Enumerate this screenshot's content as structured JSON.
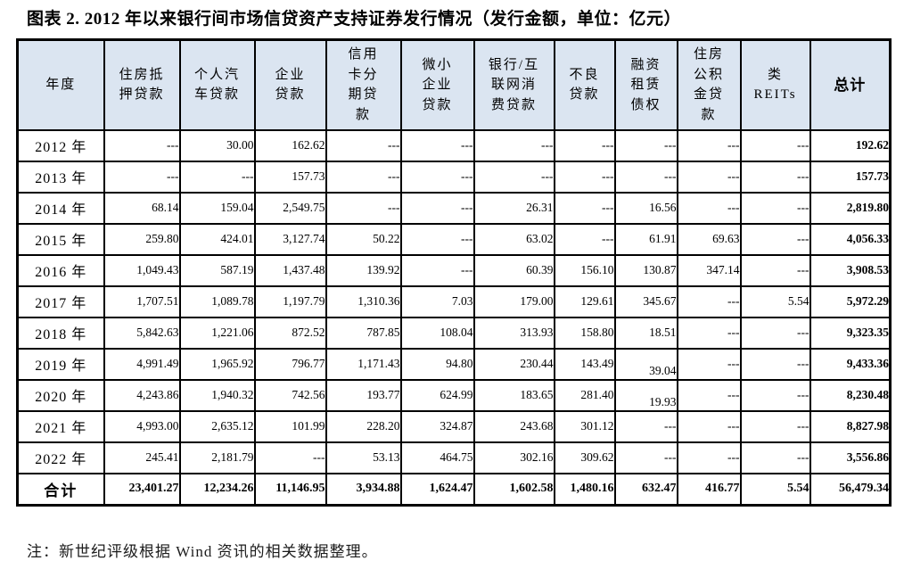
{
  "title": "图表 2. 2012 年以来银行间市场信贷资产支持证券发行情况（发行金额，单位：亿元）",
  "note": "注：新世纪评级根据 Wind 资讯的相关数据整理。",
  "colors": {
    "header_background": "#dbe5f1",
    "border": "#000000",
    "text": "#000000"
  },
  "table": {
    "headers": [
      "年度",
      "住房抵\n押贷款",
      "个人汽\n车贷款",
      "企业\n贷款",
      "信用\n卡分\n期贷\n款",
      "微小\n企业\n贷款",
      "银行/互\n联网消\n费贷款",
      "不良\n贷款",
      "融资\n租赁\n债权",
      "住房\n公积\n金贷\n款",
      "类\nREITs",
      "总计"
    ],
    "rows": [
      {
        "year": "2012 年",
        "values": [
          "---",
          "30.00",
          "162.62",
          "---",
          "---",
          "---",
          "---",
          "---",
          "---",
          "---",
          "192.62"
        ]
      },
      {
        "year": "2013 年",
        "values": [
          "---",
          "---",
          "157.73",
          "---",
          "---",
          "---",
          "---",
          "---",
          "---",
          "---",
          "157.73"
        ]
      },
      {
        "year": "2014 年",
        "values": [
          "68.14",
          "159.04",
          "2,549.75",
          "---",
          "---",
          "26.31",
          "---",
          "16.56",
          "---",
          "---",
          "2,819.80"
        ]
      },
      {
        "year": "2015 年",
        "values": [
          "259.80",
          "424.01",
          "3,127.74",
          "50.22",
          "---",
          "63.02",
          "---",
          "61.91",
          "69.63",
          "---",
          "4,056.33"
        ]
      },
      {
        "year": "2016 年",
        "values": [
          "1,049.43",
          "587.19",
          "1,437.48",
          "139.92",
          "---",
          "60.39",
          "156.10",
          "130.87",
          "347.14",
          "---",
          "3,908.53"
        ]
      },
      {
        "year": "2017 年",
        "values": [
          "1,707.51",
          "1,089.78",
          "1,197.79",
          "1,310.36",
          "7.03",
          "179.00",
          "129.61",
          "345.67",
          "---",
          "5.54",
          "5,972.29"
        ]
      },
      {
        "year": "2018 年",
        "values": [
          "5,842.63",
          "1,221.06",
          "872.52",
          "787.85",
          "108.04",
          "313.93",
          "158.80",
          "18.51",
          "---",
          "---",
          "9,323.35"
        ]
      },
      {
        "year": "2019 年",
        "values": [
          "4,991.49",
          "1,965.92",
          "796.77",
          "1,171.43",
          "94.80",
          "230.44",
          "143.49",
          "39.04",
          "---",
          "---",
          "9,433.36"
        ],
        "low": [
          7
        ]
      },
      {
        "year": "2020 年",
        "values": [
          "4,243.86",
          "1,940.32",
          "742.56",
          "193.77",
          "624.99",
          "183.65",
          "281.40",
          "19.93",
          "---",
          "---",
          "8,230.48"
        ],
        "low": [
          7
        ]
      },
      {
        "year": "2021 年",
        "values": [
          "4,993.00",
          "2,635.12",
          "101.99",
          "228.20",
          "324.87",
          "243.68",
          "301.12",
          "---",
          "---",
          "---",
          "8,827.98"
        ]
      },
      {
        "year": "2022 年",
        "values": [
          "245.41",
          "2,181.79",
          "---",
          "53.13",
          "464.75",
          "302.16",
          "309.62",
          "---",
          "---",
          "---",
          "3,556.86"
        ]
      }
    ],
    "total_row": {
      "year": "合计",
      "values": [
        "23,401.27",
        "12,234.26",
        "11,146.95",
        "3,934.88",
        "1,624.47",
        "1,602.58",
        "1,480.16",
        "632.47",
        "416.77",
        "5.54",
        "56,479.34"
      ]
    }
  }
}
